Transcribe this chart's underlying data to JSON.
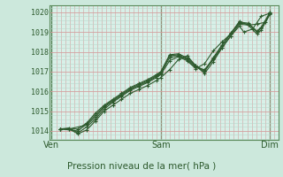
{
  "bg_color": "#cce8dc",
  "plot_bg_color": "#d8f0e8",
  "grid_color_major_h": "#d4a0a0",
  "grid_color_minor": "#b8d8cc",
  "line_color": "#2d5a2d",
  "marker_color": "#2d5a2d",
  "title": "Pression niveau de la mer( hPa )",
  "ylabel_values": [
    1014,
    1015,
    1016,
    1017,
    1018,
    1019,
    1020
  ],
  "xtick_labels": [
    "Ven",
    "Sam",
    "Dim"
  ],
  "xtick_positions": [
    0.0,
    0.5,
    1.0
  ],
  "vline_positions": [
    0.0,
    0.5,
    1.0
  ],
  "xlim": [
    -0.01,
    1.04
  ],
  "ylim": [
    1013.55,
    1020.35
  ],
  "series": [
    [
      0.04,
      1014.1,
      0.08,
      1014.1,
      0.12,
      1013.85,
      0.16,
      1014.05,
      0.2,
      1014.5,
      0.24,
      1015.0,
      0.28,
      1015.3,
      0.32,
      1015.6,
      0.36,
      1015.9,
      0.4,
      1016.1,
      0.44,
      1016.3,
      0.48,
      1016.55,
      0.5,
      1016.7,
      0.54,
      1017.1,
      0.58,
      1017.6,
      0.62,
      1017.8,
      0.66,
      1017.3,
      0.7,
      1016.9,
      0.74,
      1017.5,
      0.78,
      1018.2,
      0.82,
      1018.8,
      0.86,
      1019.3,
      0.88,
      1019.0,
      0.92,
      1019.15,
      0.96,
      1019.8,
      1.0,
      1019.95
    ],
    [
      0.04,
      1014.1,
      0.08,
      1014.15,
      0.12,
      1013.9,
      0.16,
      1014.2,
      0.2,
      1014.6,
      0.24,
      1015.1,
      0.28,
      1015.45,
      0.32,
      1015.75,
      0.36,
      1016.05,
      0.4,
      1016.25,
      0.44,
      1016.45,
      0.48,
      1016.7,
      0.5,
      1016.85,
      0.54,
      1017.55,
      0.58,
      1017.75,
      0.62,
      1017.55,
      0.66,
      1017.15,
      0.7,
      1017.4,
      0.74,
      1018.05,
      0.78,
      1018.5,
      0.82,
      1018.9,
      0.86,
      1019.55,
      0.9,
      1019.35,
      0.94,
      1019.4,
      0.98,
      1019.5,
      1.0,
      1020.0
    ],
    [
      0.04,
      1014.1,
      0.08,
      1014.1,
      0.16,
      1014.3,
      0.2,
      1014.7,
      0.24,
      1015.2,
      0.28,
      1015.5,
      0.32,
      1015.8,
      0.36,
      1016.1,
      0.4,
      1016.3,
      0.44,
      1016.5,
      0.48,
      1016.75,
      0.5,
      1016.9,
      0.54,
      1017.7,
      0.58,
      1017.8,
      0.62,
      1017.6,
      0.66,
      1017.2,
      0.7,
      1017.1,
      0.74,
      1017.6,
      0.78,
      1018.2,
      0.82,
      1018.8,
      0.86,
      1019.4,
      0.9,
      1019.35,
      0.94,
      1018.9,
      0.96,
      1019.1,
      1.0,
      1019.9
    ],
    [
      0.04,
      1014.1,
      0.12,
      1014.0,
      0.16,
      1014.35,
      0.2,
      1014.8,
      0.24,
      1015.25,
      0.28,
      1015.55,
      0.32,
      1015.85,
      0.36,
      1016.15,
      0.4,
      1016.35,
      0.44,
      1016.55,
      0.48,
      1016.8,
      0.5,
      1016.95,
      0.54,
      1017.8,
      0.58,
      1017.85,
      0.62,
      1017.65,
      0.66,
      1017.25,
      0.7,
      1017.0,
      0.74,
      1017.65,
      0.78,
      1018.3,
      0.82,
      1018.9,
      0.86,
      1019.45,
      0.9,
      1019.4,
      0.94,
      1019.0,
      0.96,
      1019.2,
      1.0,
      1019.95
    ],
    [
      0.04,
      1014.1,
      0.12,
      1014.1,
      0.16,
      1014.4,
      0.2,
      1014.9,
      0.24,
      1015.3,
      0.28,
      1015.6,
      0.32,
      1015.9,
      0.36,
      1016.2,
      0.4,
      1016.4,
      0.44,
      1016.6,
      0.48,
      1016.85,
      0.5,
      1017.0,
      0.54,
      1017.85,
      0.58,
      1017.9,
      0.62,
      1017.7,
      0.66,
      1017.3,
      0.7,
      1017.05,
      0.74,
      1017.7,
      0.78,
      1018.35,
      0.82,
      1018.95,
      0.86,
      1019.5,
      0.9,
      1019.45,
      0.94,
      1019.05,
      0.96,
      1019.25,
      1.0,
      1020.0
    ]
  ]
}
